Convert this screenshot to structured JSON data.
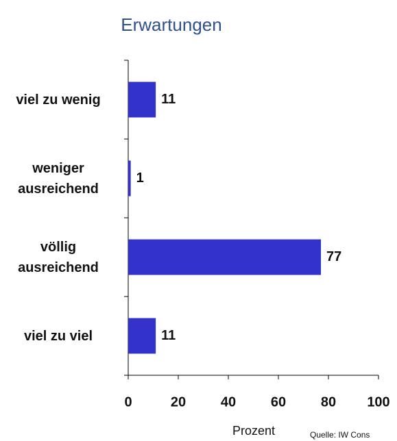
{
  "chart_data": {
    "type": "bar",
    "orientation": "horizontal",
    "title": "Erwartungen",
    "categories": [
      "viel zu wenig",
      "weniger ausreichend",
      "völlig ausreichend",
      "viel zu viel"
    ],
    "values": [
      11,
      1,
      77,
      11
    ],
    "color": "#3333cc",
    "xlim": [
      0,
      100
    ],
    "xticks": [
      0,
      20,
      40,
      60,
      80,
      100
    ],
    "x_label": "Prozent",
    "source": "Quelle: IW Cons"
  }
}
